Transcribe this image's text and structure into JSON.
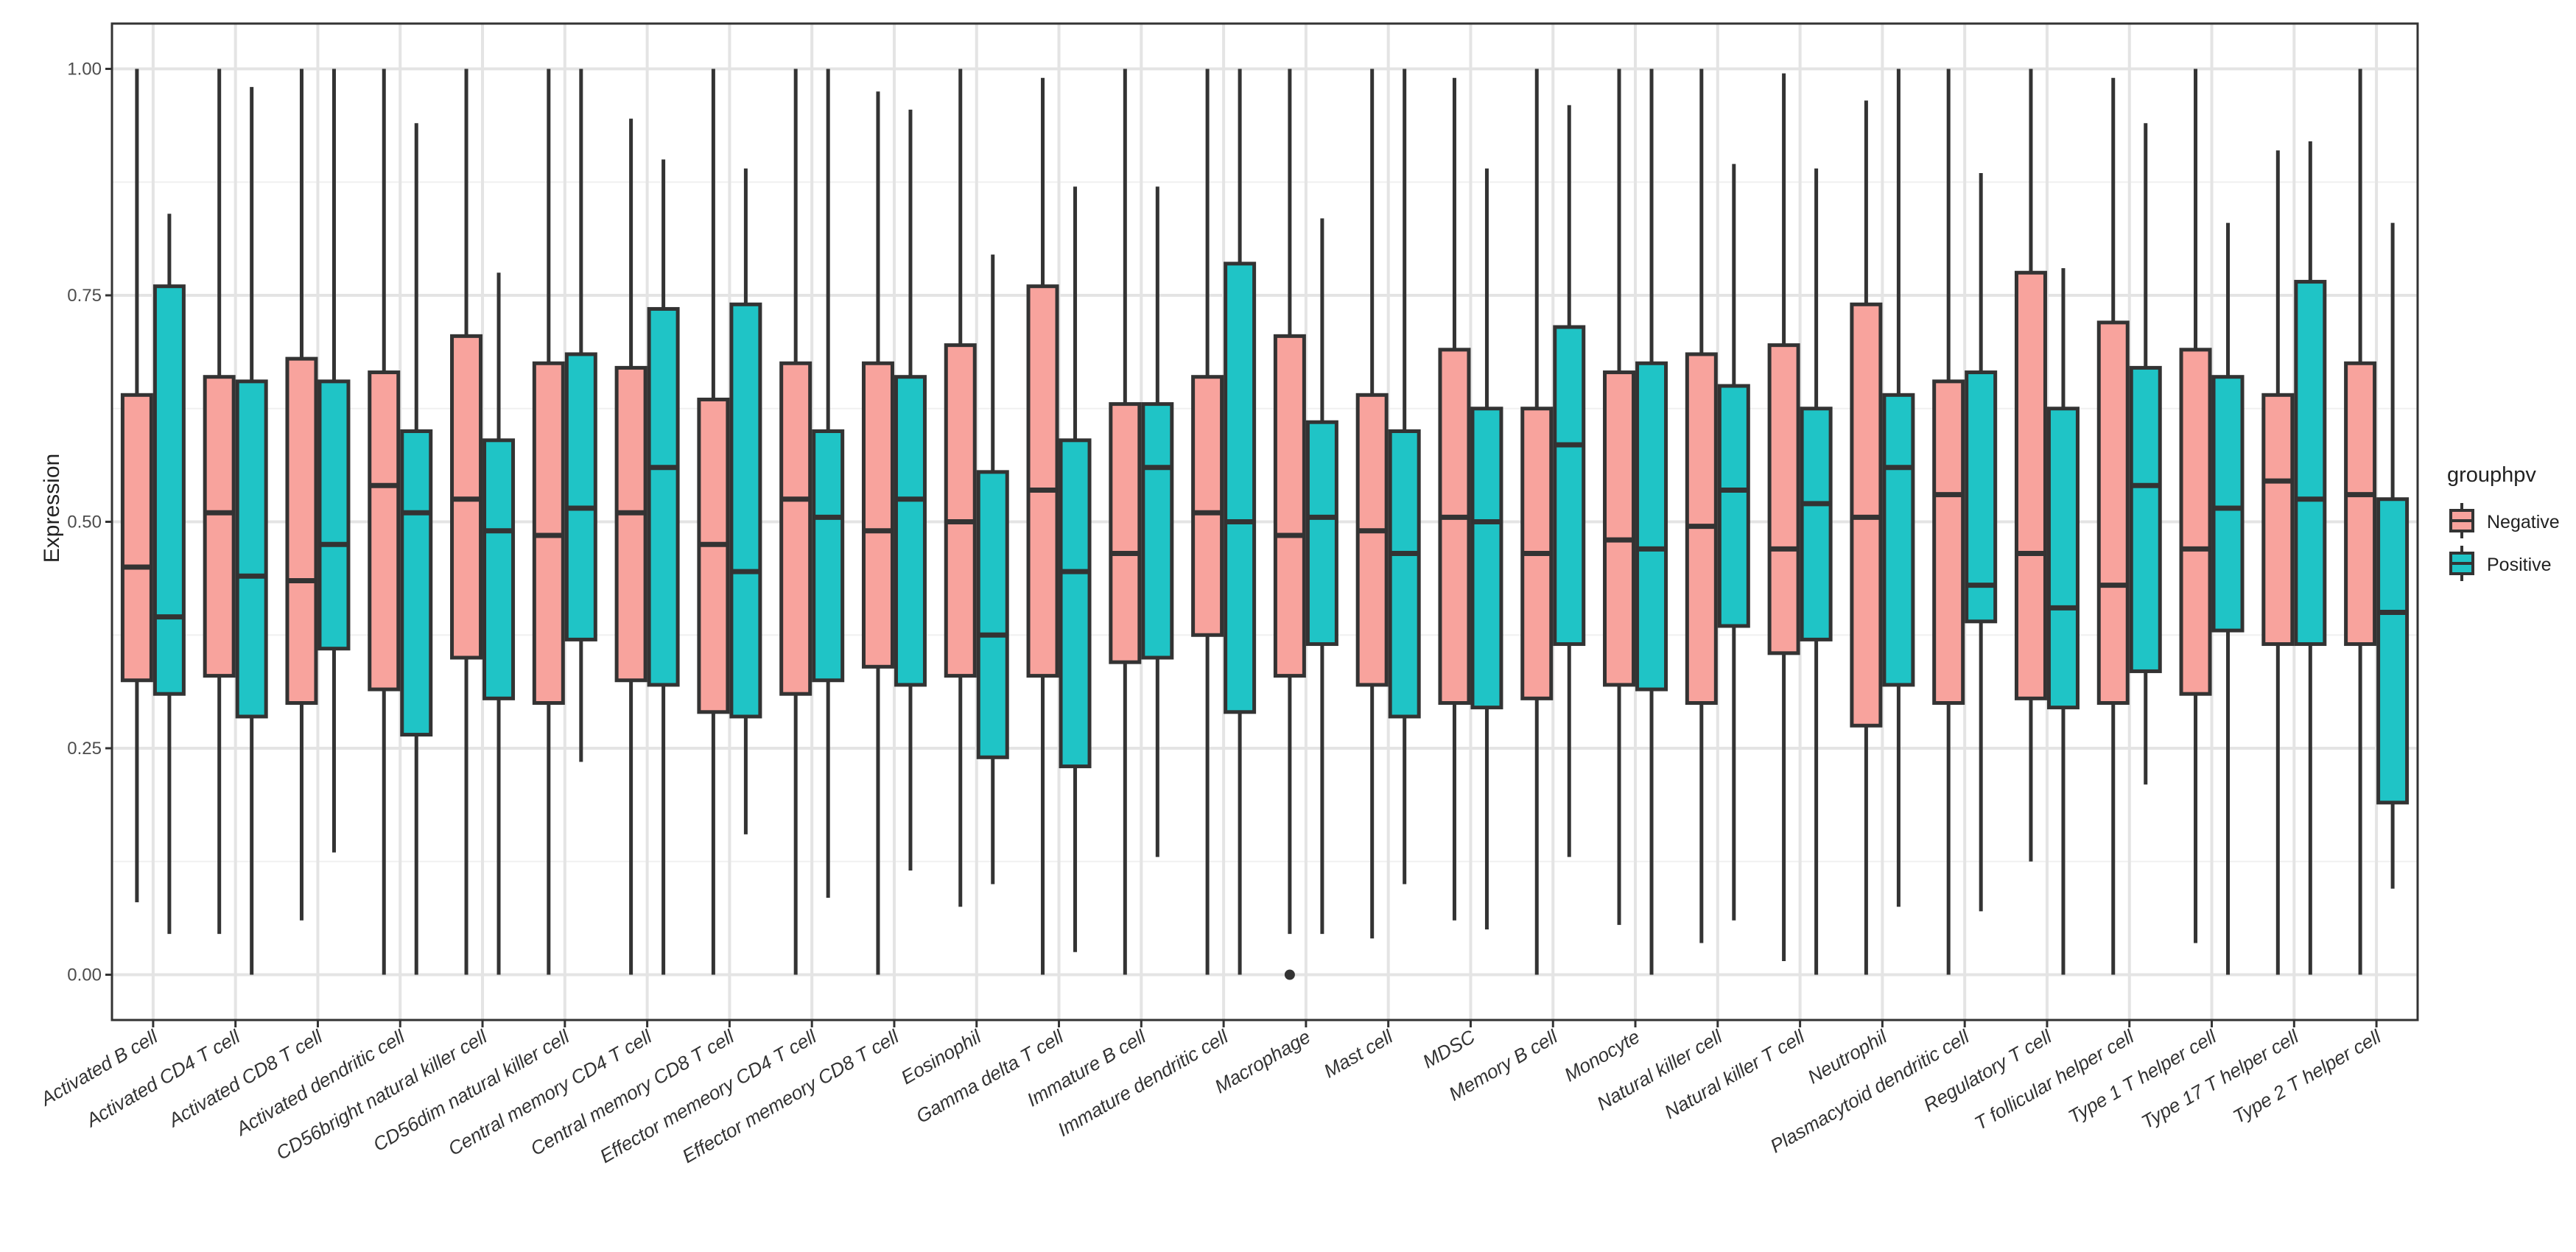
{
  "chart_data": {
    "type": "boxplot",
    "title": "",
    "xlabel": "",
    "ylabel": "Expression",
    "ylim": [
      -0.05,
      1.05
    ],
    "yticks": [
      0.0,
      0.25,
      0.5,
      0.75,
      1.0
    ],
    "ytick_labels": [
      "0.00",
      "0.25",
      "0.50",
      "0.75",
      "1.00"
    ],
    "grid": true,
    "legend": {
      "title": "grouphpv",
      "position": "right",
      "entries": [
        {
          "name": "Negative",
          "color": "#f8a39d"
        },
        {
          "name": "Positive",
          "color": "#1fc4c6"
        }
      ]
    },
    "categories": [
      "Activated B cell",
      "Activated CD4 T cell",
      "Activated CD8 T cell",
      "Activated dendritic cell",
      "CD56bright natural killer cell",
      "CD56dim natural killer cell",
      "Central memory CD4 T cell",
      "Central memory CD8 T cell",
      "Effector memeory CD4 T cell",
      "Effector memeory CD8 T cell",
      "Eosinophil",
      "Gamma delta T cell",
      "Immature  B cell",
      "Immature dendritic cell",
      "Macrophage",
      "Mast cell",
      "MDSC",
      "Memory B cell",
      "Monocyte",
      "Natural killer cell",
      "Natural killer T cell",
      "Neutrophil",
      "Plasmacytoid dendritic cell",
      "Regulatory T cell",
      "T follicular helper cell",
      "Type 1 T helper cell",
      "Type 17 T helper cell",
      "Type 2 T helper cell"
    ],
    "series": [
      {
        "name": "Negative",
        "boxes": [
          {
            "min": 0.08,
            "q1": 0.325,
            "median": 0.45,
            "q3": 0.64,
            "max": 1.0
          },
          {
            "min": 0.045,
            "q1": 0.33,
            "median": 0.51,
            "q3": 0.66,
            "max": 1.0
          },
          {
            "min": 0.06,
            "q1": 0.3,
            "median": 0.435,
            "q3": 0.68,
            "max": 1.0
          },
          {
            "min": 0.0,
            "q1": 0.315,
            "median": 0.54,
            "q3": 0.665,
            "max": 1.0
          },
          {
            "min": 0.0,
            "q1": 0.35,
            "median": 0.525,
            "q3": 0.705,
            "max": 1.0
          },
          {
            "min": 0.0,
            "q1": 0.3,
            "median": 0.485,
            "q3": 0.675,
            "max": 1.0
          },
          {
            "min": 0.0,
            "q1": 0.325,
            "median": 0.51,
            "q3": 0.67,
            "max": 0.945
          },
          {
            "min": 0.0,
            "q1": 0.29,
            "median": 0.475,
            "q3": 0.635,
            "max": 1.0
          },
          {
            "min": 0.0,
            "q1": 0.31,
            "median": 0.525,
            "q3": 0.675,
            "max": 1.0
          },
          {
            "min": 0.0,
            "q1": 0.34,
            "median": 0.49,
            "q3": 0.675,
            "max": 0.975
          },
          {
            "min": 0.075,
            "q1": 0.33,
            "median": 0.5,
            "q3": 0.695,
            "max": 1.0
          },
          {
            "min": 0.0,
            "q1": 0.33,
            "median": 0.535,
            "q3": 0.76,
            "max": 0.99
          },
          {
            "min": 0.0,
            "q1": 0.345,
            "median": 0.465,
            "q3": 0.63,
            "max": 1.0
          },
          {
            "min": 0.0,
            "q1": 0.375,
            "median": 0.51,
            "q3": 0.66,
            "max": 1.0
          },
          {
            "min": 0.045,
            "q1": 0.33,
            "median": 0.485,
            "q3": 0.705,
            "max": 1.0,
            "outliers": [
              0.0
            ]
          },
          {
            "min": 0.04,
            "q1": 0.32,
            "median": 0.49,
            "q3": 0.64,
            "max": 1.0
          },
          {
            "min": 0.06,
            "q1": 0.3,
            "median": 0.505,
            "q3": 0.69,
            "max": 0.99
          },
          {
            "min": 0.0,
            "q1": 0.305,
            "median": 0.465,
            "q3": 0.625,
            "max": 1.0
          },
          {
            "min": 0.055,
            "q1": 0.32,
            "median": 0.48,
            "q3": 0.665,
            "max": 1.0
          },
          {
            "min": 0.035,
            "q1": 0.3,
            "median": 0.495,
            "q3": 0.685,
            "max": 1.0
          },
          {
            "min": 0.015,
            "q1": 0.355,
            "median": 0.47,
            "q3": 0.695,
            "max": 0.995
          },
          {
            "min": 0.0,
            "q1": 0.275,
            "median": 0.505,
            "q3": 0.74,
            "max": 0.965
          },
          {
            "min": 0.0,
            "q1": 0.3,
            "median": 0.53,
            "q3": 0.655,
            "max": 1.0
          },
          {
            "min": 0.125,
            "q1": 0.305,
            "median": 0.465,
            "q3": 0.775,
            "max": 1.0
          },
          {
            "min": 0.0,
            "q1": 0.3,
            "median": 0.43,
            "q3": 0.72,
            "max": 0.99
          },
          {
            "min": 0.035,
            "q1": 0.31,
            "median": 0.47,
            "q3": 0.69,
            "max": 1.0
          },
          {
            "min": 0.0,
            "q1": 0.365,
            "median": 0.545,
            "q3": 0.64,
            "max": 0.91
          },
          {
            "min": 0.0,
            "q1": 0.365,
            "median": 0.53,
            "q3": 0.675,
            "max": 1.0
          }
        ]
      },
      {
        "name": "Positive",
        "boxes": [
          {
            "min": 0.045,
            "q1": 0.31,
            "median": 0.395,
            "q3": 0.76,
            "max": 0.84
          },
          {
            "min": 0.0,
            "q1": 0.285,
            "median": 0.44,
            "q3": 0.655,
            "max": 0.98
          },
          {
            "min": 0.135,
            "q1": 0.36,
            "median": 0.475,
            "q3": 0.655,
            "max": 1.0
          },
          {
            "min": 0.0,
            "q1": 0.265,
            "median": 0.51,
            "q3": 0.6,
            "max": 0.94
          },
          {
            "min": 0.0,
            "q1": 0.305,
            "median": 0.49,
            "q3": 0.59,
            "max": 0.775
          },
          {
            "min": 0.235,
            "q1": 0.37,
            "median": 0.515,
            "q3": 0.685,
            "max": 1.0
          },
          {
            "min": 0.0,
            "q1": 0.32,
            "median": 0.56,
            "q3": 0.735,
            "max": 0.9
          },
          {
            "min": 0.155,
            "q1": 0.285,
            "median": 0.445,
            "q3": 0.74,
            "max": 0.89
          },
          {
            "min": 0.085,
            "q1": 0.325,
            "median": 0.505,
            "q3": 0.6,
            "max": 1.0
          },
          {
            "min": 0.115,
            "q1": 0.32,
            "median": 0.525,
            "q3": 0.66,
            "max": 0.955
          },
          {
            "min": 0.1,
            "q1": 0.24,
            "median": 0.375,
            "q3": 0.555,
            "max": 0.795
          },
          {
            "min": 0.025,
            "q1": 0.23,
            "median": 0.445,
            "q3": 0.59,
            "max": 0.87
          },
          {
            "min": 0.13,
            "q1": 0.35,
            "median": 0.56,
            "q3": 0.63,
            "max": 0.87
          },
          {
            "min": 0.0,
            "q1": 0.29,
            "median": 0.5,
            "q3": 0.785,
            "max": 1.0
          },
          {
            "min": 0.045,
            "q1": 0.365,
            "median": 0.505,
            "q3": 0.61,
            "max": 0.835
          },
          {
            "min": 0.1,
            "q1": 0.285,
            "median": 0.465,
            "q3": 0.6,
            "max": 1.0
          },
          {
            "min": 0.05,
            "q1": 0.295,
            "median": 0.5,
            "q3": 0.625,
            "max": 0.89
          },
          {
            "min": 0.13,
            "q1": 0.365,
            "median": 0.585,
            "q3": 0.715,
            "max": 0.96
          },
          {
            "min": 0.0,
            "q1": 0.315,
            "median": 0.47,
            "q3": 0.675,
            "max": 1.0
          },
          {
            "min": 0.06,
            "q1": 0.385,
            "median": 0.535,
            "q3": 0.65,
            "max": 0.895
          },
          {
            "min": 0.0,
            "q1": 0.37,
            "median": 0.52,
            "q3": 0.625,
            "max": 0.89
          },
          {
            "min": 0.075,
            "q1": 0.32,
            "median": 0.56,
            "q3": 0.64,
            "max": 1.0
          },
          {
            "min": 0.07,
            "q1": 0.39,
            "median": 0.43,
            "q3": 0.665,
            "max": 0.885
          },
          {
            "min": 0.0,
            "q1": 0.295,
            "median": 0.405,
            "q3": 0.625,
            "max": 0.78
          },
          {
            "min": 0.21,
            "q1": 0.335,
            "median": 0.54,
            "q3": 0.67,
            "max": 0.94
          },
          {
            "min": 0.0,
            "q1": 0.38,
            "median": 0.515,
            "q3": 0.66,
            "max": 0.83
          },
          {
            "min": 0.0,
            "q1": 0.365,
            "median": 0.525,
            "q3": 0.765,
            "max": 0.92
          },
          {
            "min": 0.095,
            "q1": 0.19,
            "median": 0.4,
            "q3": 0.525,
            "max": 0.83
          }
        ]
      }
    ]
  }
}
